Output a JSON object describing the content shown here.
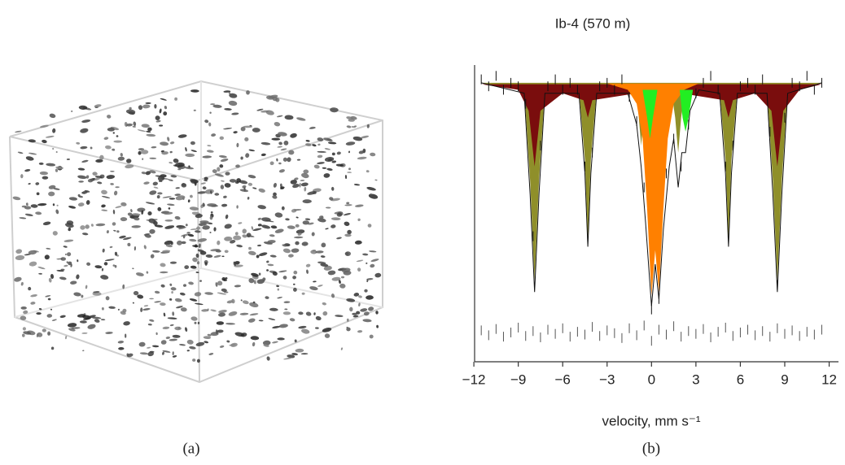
{
  "panel_labels": [
    "(a)",
    "(b)"
  ],
  "chart_data": {
    "type": "line",
    "title": "Ib-4 (570 m)",
    "xlabel": "velocity, mm s⁻¹",
    "xlim": [
      -11.95,
      12.3
    ],
    "ylim": [
      0.6,
      1.0255
    ],
    "xticks": [
      {
        "value": -12,
        "label": "−12"
      },
      {
        "value": -9,
        "label": "−9"
      },
      {
        "value": -6,
        "label": "−6"
      },
      {
        "value": -3,
        "label": "−3"
      },
      0,
      3,
      6,
      9,
      12
    ],
    "series": [
      {
        "style": "area",
        "color": "#8f8f2a",
        "x": [
          -11.5,
          -8.6,
          -8.2,
          -7.9,
          -7.6,
          -7.2,
          -4.9,
          -4.5,
          -4.3,
          -4.1,
          -3.7,
          -1.2,
          -0.9,
          -0.7,
          -0.5,
          -0.2,
          1.3,
          1.6,
          1.8,
          2.0,
          2.3,
          4.6,
          5.0,
          5.2,
          5.4,
          5.8,
          7.8,
          8.2,
          8.5,
          8.8,
          9.2,
          11.5
        ],
        "values": [
          1.0,
          0.99,
          0.86,
          0.717,
          0.86,
          0.99,
          0.99,
          0.89,
          0.775,
          0.89,
          0.99,
          0.995,
          0.96,
          0.91,
          0.96,
          0.995,
          0.995,
          0.95,
          0.9,
          0.95,
          0.995,
          0.99,
          0.89,
          0.775,
          0.89,
          0.99,
          0.99,
          0.86,
          0.717,
          0.86,
          0.99,
          1.0
        ]
      },
      {
        "style": "area",
        "color": "#7a0d0d",
        "x": [
          -11.5,
          -9,
          -8.3,
          -7.9,
          -7.5,
          -6,
          -4.6,
          -4.3,
          -4.0,
          -1,
          2,
          4.9,
          5.2,
          5.5,
          7,
          8.1,
          8.5,
          8.9,
          10,
          11.5
        ],
        "values": [
          0.998,
          0.99,
          0.96,
          0.88,
          0.96,
          0.985,
          0.975,
          0.95,
          0.975,
          0.985,
          0.985,
          0.975,
          0.95,
          0.975,
          0.985,
          0.96,
          0.88,
          0.96,
          0.99,
          0.998
        ]
      },
      {
        "style": "area",
        "color": "#ff8000",
        "x": [
          -3,
          -1.6,
          -1.0,
          -0.6,
          -0.3,
          0,
          0.25,
          0.5,
          0.8,
          1.1,
          1.5,
          2.2,
          3.2
        ],
        "values": [
          0.999,
          0.99,
          0.97,
          0.92,
          0.82,
          0.695,
          0.76,
          0.7,
          0.82,
          0.92,
          0.97,
          0.99,
          0.999
        ]
      },
      {
        "style": "area",
        "color": "#22ee22",
        "x": [
          -0.6,
          -0.3,
          -0.1,
          0.1,
          0.4,
          1.2,
          1.9,
          2.1,
          2.3,
          2.5,
          2.8
        ],
        "values": [
          0.99,
          0.95,
          0.92,
          0.95,
          0.99,
          null,
          0.99,
          0.95,
          0.93,
          0.95,
          0.99
        ]
      },
      {
        "style": "line",
        "color": "#111111",
        "x": [
          -11.5,
          -8.6,
          -8.2,
          -7.9,
          -7.6,
          -7.2,
          -4.9,
          -4.5,
          -4.3,
          -4.1,
          -3.7,
          -1.6,
          -1.0,
          -0.7,
          -0.4,
          0,
          0.25,
          0.5,
          0.8,
          1.2,
          1.5,
          1.8,
          2.05,
          2.3,
          2.6,
          3.2,
          4.6,
          5.0,
          5.2,
          5.4,
          5.8,
          7.8,
          8.2,
          8.5,
          8.8,
          9.2,
          11.5
        ],
        "values": [
          1.0,
          0.985,
          0.84,
          0.7,
          0.84,
          0.985,
          0.985,
          0.87,
          0.765,
          0.87,
          0.985,
          0.985,
          0.94,
          0.88,
          0.8,
          0.68,
          0.74,
          0.69,
          0.79,
          0.88,
          0.92,
          0.85,
          0.9,
          0.9,
          0.96,
          0.99,
          0.985,
          0.87,
          0.765,
          0.87,
          0.985,
          0.985,
          0.84,
          0.7,
          0.84,
          0.985,
          1.0
        ]
      },
      {
        "style": "points",
        "color": "#111111",
        "x": [
          -11.5,
          -11,
          -10.5,
          -10,
          -9.5,
          -9,
          -8.5,
          -8,
          -7.5,
          -7,
          -6.5,
          -6,
          -5.5,
          -5,
          -4.5,
          -4,
          -3.5,
          -3,
          -2.5,
          -2,
          -1.5,
          -1,
          -0.5,
          0,
          0.5,
          1,
          1.5,
          2,
          2.5,
          3,
          3.5,
          4,
          4.5,
          5,
          5.5,
          6,
          6.5,
          7,
          7.5,
          8,
          8.5,
          9,
          9.5,
          10,
          10.5,
          11,
          11.5
        ],
        "values": [
          1.005,
          0.995,
          1.01,
          0.99,
          1.0,
          0.995,
          0.97,
          0.78,
          0.91,
          0.995,
          1.005,
          0.99,
          1.0,
          0.99,
          0.88,
          0.9,
          0.995,
          1.0,
          0.99,
          1.005,
          0.98,
          0.945,
          0.85,
          0.675,
          0.69,
          0.87,
          0.92,
          0.88,
          0.94,
          0.985,
          1.0,
          1.01,
          0.99,
          0.88,
          0.91,
          0.995,
          1.0,
          0.99,
          1.005,
          0.93,
          0.71,
          0.95,
          1.0,
          0.995,
          1.01,
          0.99,
          1.0
        ]
      },
      {
        "style": "points",
        "color": "#555555",
        "x": [
          -11.5,
          -11,
          -10.5,
          -10,
          -9.5,
          -9,
          -8.5,
          -8,
          -7.5,
          -7,
          -6.5,
          -6,
          -5.5,
          -5,
          -4.5,
          -4,
          -3.5,
          -3,
          -2.5,
          -2,
          -1.5,
          -1,
          -0.5,
          0,
          0.5,
          1,
          1.5,
          2,
          2.5,
          3,
          3.5,
          4,
          4.5,
          5,
          5.5,
          6,
          6.5,
          7,
          7.5,
          8,
          8.5,
          9,
          9.5,
          10,
          10.5,
          11,
          11.5
        ],
        "values": [
          0.645,
          0.638,
          0.647,
          0.636,
          0.642,
          0.649,
          0.637,
          0.644,
          0.635,
          0.646,
          0.64,
          0.648,
          0.636,
          0.643,
          0.639,
          0.65,
          0.637,
          0.645,
          0.641,
          0.634,
          0.648,
          0.638,
          0.652,
          0.63,
          0.646,
          0.639,
          0.651,
          0.636,
          0.644,
          0.64,
          0.647,
          0.635,
          0.643,
          0.649,
          0.637,
          0.642,
          0.646,
          0.638,
          0.644,
          0.636,
          0.648,
          0.64,
          0.645,
          0.637,
          0.643,
          0.639,
          0.646
        ]
      }
    ]
  }
}
